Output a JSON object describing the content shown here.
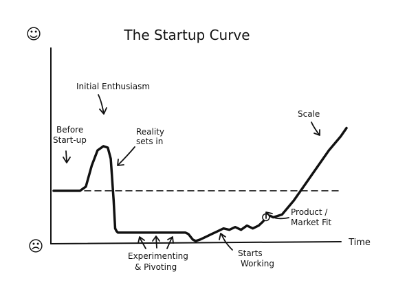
{
  "chart_data": {
    "type": "line",
    "title": "The Startup Curve",
    "xlabel": "Time",
    "ylabel": "",
    "y_axis_top_symbol": "☺",
    "y_axis_bottom_symbol": "☹",
    "grid": false,
    "xlim": [
      0,
      100
    ],
    "ylim": [
      0,
      100
    ],
    "baseline_dashed_y": 37,
    "series": [
      {
        "x": [
          0,
          9,
          11,
          13,
          15,
          17,
          18.5,
          19.5,
          20.5,
          21,
          21.5,
          22,
          25,
          30,
          35,
          40,
          45,
          46,
          47.5,
          48.5,
          50,
          52,
          54,
          56,
          58,
          60,
          62,
          64,
          66,
          68,
          70,
          71.5,
          72.5,
          74,
          75,
          78,
          82,
          86,
          90,
          94,
          98,
          100
        ],
        "y": [
          37,
          37,
          40,
          55,
          66,
          69,
          68,
          60,
          30,
          10,
          8,
          7,
          7,
          7,
          7,
          7,
          7,
          6,
          2,
          1,
          2,
          4,
          6,
          8,
          10,
          9,
          11,
          9,
          12,
          10,
          12,
          15,
          18,
          19,
          18,
          20,
          30,
          42,
          54,
          66,
          76,
          82
        ]
      }
    ],
    "annotations": {
      "initial_enthusiasm": "Initial Enthusiasm",
      "before_startup_1": "Before",
      "before_startup_2": "Start-up",
      "reality_1": "Reality",
      "reality_2": "sets in",
      "scale": "Scale",
      "product_1": "Product /",
      "product_2": "Market Fit",
      "experimenting_1": "Experimenting",
      "experimenting_2": "& Pivoting",
      "starts_1": "Starts",
      "starts_2": "Working"
    }
  }
}
